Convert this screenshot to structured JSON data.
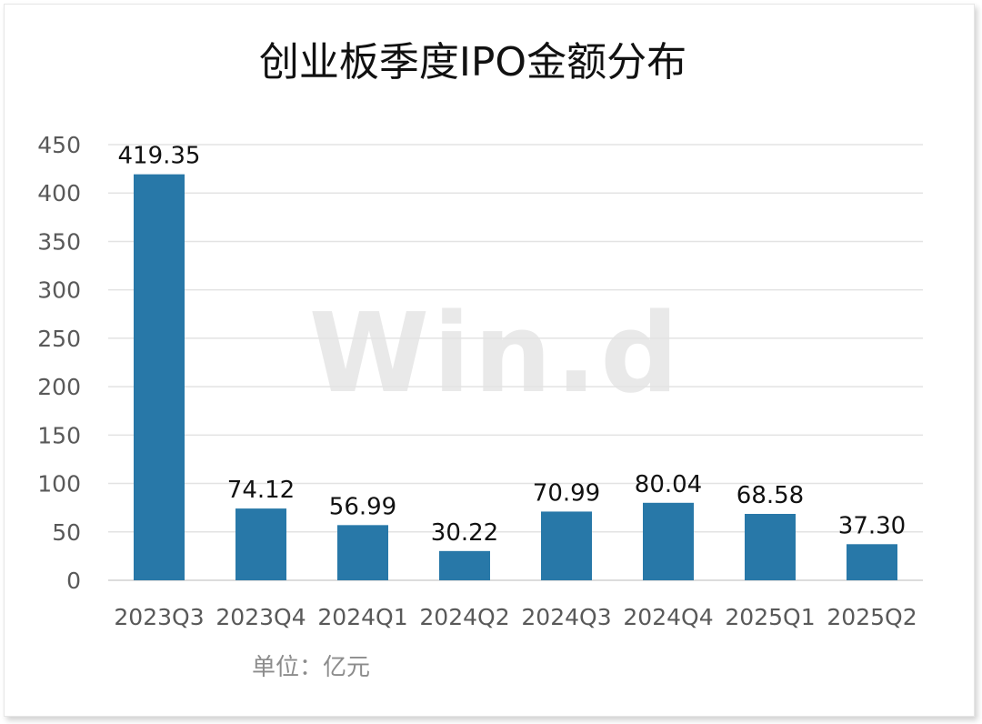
{
  "chart_data": {
    "type": "bar",
    "title": "创业板季度IPO金额分布",
    "categories": [
      "2023Q3",
      "2023Q4",
      "2024Q1",
      "2024Q2",
      "2024Q3",
      "2024Q4",
      "2025Q1",
      "2025Q2"
    ],
    "values": [
      419.35,
      74.12,
      56.99,
      30.22,
      70.99,
      80.04,
      68.58,
      37.3
    ],
    "data_labels": [
      "419.35",
      "74.12",
      "56.99",
      "30.22",
      "70.99",
      "80.04",
      "68.58",
      "37.30"
    ],
    "y_ticks": [
      0,
      50,
      100,
      150,
      200,
      250,
      300,
      350,
      400,
      450
    ],
    "ylim": [
      0,
      450
    ],
    "grid": true,
    "bar_color": "#2878a8",
    "unit_label": "单位：亿元",
    "watermark": "Win.d"
  }
}
